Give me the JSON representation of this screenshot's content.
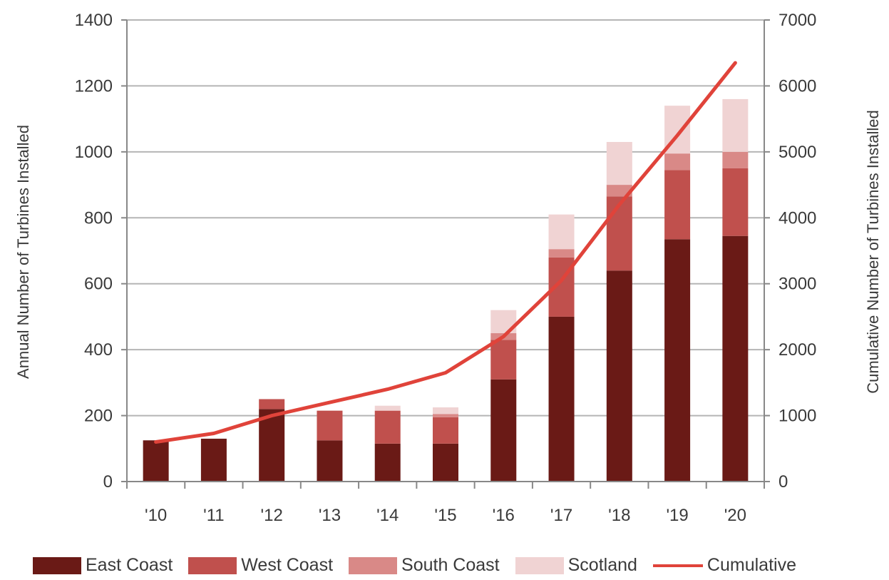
{
  "chart_data": {
    "type": "bar",
    "stacked": true,
    "categories": [
      "'10",
      "'11",
      "'12",
      "'13",
      "'14",
      "'15",
      "'16",
      "'17",
      "'18",
      "'19",
      "'20"
    ],
    "series": [
      {
        "name": "East Coast",
        "color": "#6a1a16",
        "axis": "left",
        "values": [
          125,
          130,
          220,
          125,
          115,
          115,
          310,
          500,
          640,
          735,
          745
        ]
      },
      {
        "name": "West Coast",
        "color": "#c0504d",
        "axis": "left",
        "values": [
          0,
          0,
          30,
          90,
          100,
          80,
          120,
          180,
          225,
          210,
          205
        ]
      },
      {
        "name": "South Coast",
        "color": "#d98987",
        "axis": "left",
        "values": [
          0,
          0,
          0,
          0,
          0,
          10,
          20,
          25,
          35,
          50,
          50
        ]
      },
      {
        "name": "Scotland",
        "color": "#f0d3d3",
        "axis": "left",
        "values": [
          0,
          0,
          0,
          0,
          15,
          20,
          70,
          105,
          130,
          145,
          160
        ]
      },
      {
        "name": "Cumulative",
        "type": "line",
        "color": "#e0433a",
        "axis": "right",
        "values": [
          600,
          730,
          1000,
          1200,
          1400,
          1650,
          2200,
          3050,
          4200,
          5250,
          6350
        ]
      }
    ],
    "xlabel": "",
    "ylabel": "Annual Number  of Turbines Installed",
    "y2label": "Cumulative Number of Turbines Installed",
    "ylim": [
      0,
      1400
    ],
    "y2lim": [
      0,
      7000
    ],
    "yticks": [
      "0",
      "200",
      "400",
      "600",
      "800",
      "1000",
      "1200",
      "1400"
    ],
    "y2ticks": [
      "0",
      "1000",
      "2000",
      "3000",
      "4000",
      "5000",
      "6000",
      "7000"
    ],
    "grid": true,
    "legend_position": "bottom"
  }
}
